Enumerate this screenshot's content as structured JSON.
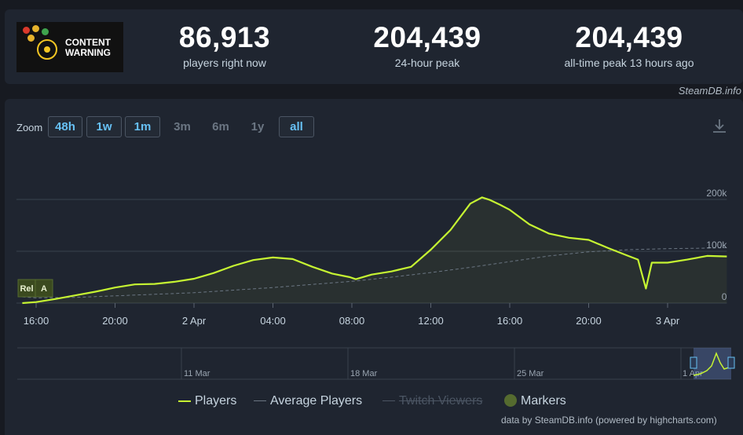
{
  "stats": [
    {
      "value": "86,913",
      "label": "players right now"
    },
    {
      "value": "204,439",
      "label": "24-hour peak"
    },
    {
      "value": "204,439",
      "label": "all-time peak 13 hours ago"
    }
  ],
  "game": {
    "title_line1": "CONTENT",
    "title_line2": "WARNING"
  },
  "credit_top": "SteamDB.info",
  "zoom": {
    "label": "Zoom",
    "buttons": [
      {
        "label": "48h",
        "active": true
      },
      {
        "label": "1w",
        "active": true
      },
      {
        "label": "1m",
        "active": true
      },
      {
        "label": "3m",
        "active": false
      },
      {
        "label": "6m",
        "active": false
      },
      {
        "label": "1y",
        "active": false
      },
      {
        "label": "all",
        "active": true
      }
    ]
  },
  "markers": [
    "Rel",
    "A"
  ],
  "legend": {
    "players": "Players",
    "average": "Average Players",
    "twitch": "Twitch Viewers",
    "markers": "Markers"
  },
  "credit_bottom": "data by SteamDB.info (powered by highcharts.com)",
  "navigator": {
    "labels": [
      "11 Mar",
      "18 Mar",
      "25 Mar",
      "1 Apr"
    ]
  },
  "colors": {
    "players": "#c6f432",
    "average": "#6b7683",
    "background": "#1f2530"
  },
  "chart_data": {
    "type": "line",
    "x_unit": "hours since 1 Apr 16:00",
    "xlim": [
      -1,
      35
    ],
    "ylim": [
      0,
      200000
    ],
    "yticks": [
      {
        "value": 0,
        "label": "0"
      },
      {
        "value": 100000,
        "label": "100k"
      },
      {
        "value": 200000,
        "label": "200k"
      }
    ],
    "xticks": [
      {
        "value": 0,
        "label": "16:00"
      },
      {
        "value": 4,
        "label": "20:00"
      },
      {
        "value": 8,
        "label": "2 Apr"
      },
      {
        "value": 12,
        "label": "04:00"
      },
      {
        "value": 16,
        "label": "08:00"
      },
      {
        "value": 20,
        "label": "12:00"
      },
      {
        "value": 24,
        "label": "16:00"
      },
      {
        "value": 28,
        "label": "20:00"
      },
      {
        "value": 32,
        "label": "3 Apr"
      }
    ],
    "series": [
      {
        "name": "Players",
        "x": [
          -0.7,
          0,
          1,
          2,
          3,
          4,
          5,
          6,
          7,
          8,
          9,
          10,
          11,
          12,
          13,
          14,
          15,
          15.9,
          16.2,
          17,
          18,
          19,
          20,
          21,
          22,
          22.6,
          23,
          23.5,
          24,
          25,
          26,
          27,
          28,
          29,
          30,
          30.5,
          30.9,
          31.2,
          32,
          33,
          34,
          35
        ],
        "y": [
          0,
          2000,
          8000,
          15000,
          22000,
          30000,
          36000,
          37000,
          41000,
          47000,
          58000,
          72000,
          83000,
          88000,
          85000,
          70000,
          57000,
          50000,
          46000,
          55000,
          61000,
          70000,
          103000,
          141000,
          192000,
          204000,
          199000,
          190000,
          180000,
          152000,
          134000,
          126000,
          122000,
          106000,
          91000,
          84000,
          28000,
          78000,
          78000,
          84000,
          91000,
          90000
        ]
      },
      {
        "name": "Average Players",
        "x": [
          -0.7,
          0,
          2,
          4,
          6,
          8,
          10,
          12,
          14,
          16,
          18,
          20,
          22,
          24,
          26,
          28,
          30,
          32,
          34,
          35
        ],
        "y": [
          12000,
          10000,
          11000,
          14000,
          17000,
          20000,
          25000,
          30000,
          36000,
          42000,
          50000,
          59000,
          69000,
          80000,
          91000,
          99000,
          103000,
          105000,
          106000,
          107000
        ]
      }
    ]
  }
}
